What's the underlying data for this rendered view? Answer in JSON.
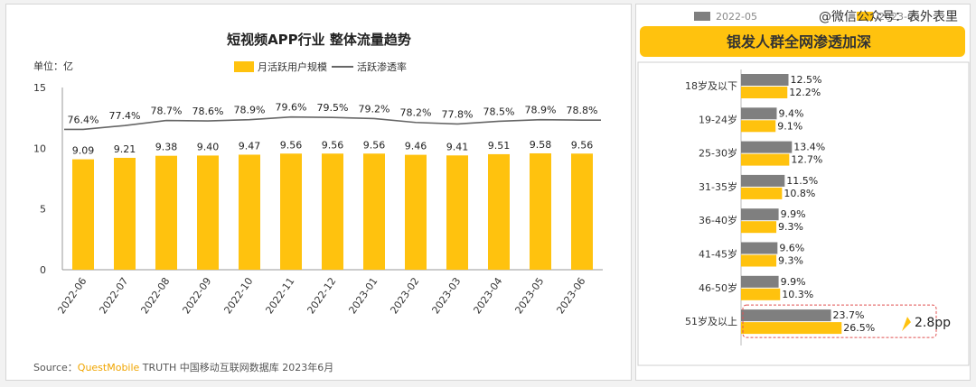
{
  "left_chart": {
    "title": "短视频APP行业 整体流量趋势",
    "unit_label": "单位：亿",
    "legend": {
      "bar_label": "月活跃用户规模",
      "line_label": "活跃渗透率"
    },
    "source_prefix": "Source：",
    "source_brand": "QuestMobile",
    "source_rest": " TRUTH 中国移动互联网数据库 2023年6月"
  },
  "right_chart": {
    "title": "银发人群全网渗透加深",
    "legend": [
      "2022-05",
      "2023-05"
    ],
    "watermark": "@微信公众号：表外表里",
    "highlight_label": "2.8pp"
  },
  "chart_data": [
    {
      "type": "bar",
      "title": "短视频APP行业 整体流量趋势",
      "ylabel": "单位：亿",
      "ylim": [
        0,
        15
      ],
      "yticks": [
        0,
        5,
        10,
        15
      ],
      "categories": [
        "2022-06",
        "2022-07",
        "2022-08",
        "2022-09",
        "2022-10",
        "2022-11",
        "2022-12",
        "2023-01",
        "2023-02",
        "2023-03",
        "2023-04",
        "2023-05",
        "2023-06"
      ],
      "series": [
        {
          "name": "月活跃用户规模",
          "values": [
            9.09,
            9.21,
            9.38,
            9.4,
            9.47,
            9.56,
            9.56,
            9.56,
            9.46,
            9.41,
            9.51,
            9.58,
            9.56
          ],
          "color": "#ffc20e"
        },
        {
          "name": "活跃渗透率",
          "kind": "line",
          "values": [
            76.4,
            77.4,
            78.7,
            78.6,
            78.9,
            79.6,
            79.5,
            79.2,
            78.2,
            77.8,
            78.5,
            78.9,
            78.8
          ],
          "labels": [
            "76.4%",
            "77.4%",
            "78.7%",
            "78.6%",
            "78.9%",
            "79.6%",
            "79.5%",
            "79.2%",
            "78.2%",
            "77.8%",
            "78.5%",
            "78.9%",
            "78.8%"
          ],
          "color": "#666666"
        }
      ],
      "grid": false,
      "legend_position": "top"
    },
    {
      "type": "bar",
      "orientation": "horizontal",
      "title": "银发人群全网渗透加深",
      "categories": [
        "18岁及以下",
        "19-24岁",
        "25-30岁",
        "31-35岁",
        "36-40岁",
        "41-45岁",
        "46-50岁",
        "51岁及以上"
      ],
      "series": [
        {
          "name": "2022-05",
          "values": [
            12.5,
            9.4,
            13.4,
            11.5,
            9.9,
            9.6,
            9.9,
            23.7
          ],
          "color": "#7f7f7f"
        },
        {
          "name": "2023-05",
          "values": [
            12.2,
            9.1,
            12.7,
            10.8,
            9.3,
            9.3,
            10.3,
            26.5
          ],
          "color": "#ffc20e"
        }
      ],
      "grid": false,
      "legend_position": "top"
    }
  ]
}
